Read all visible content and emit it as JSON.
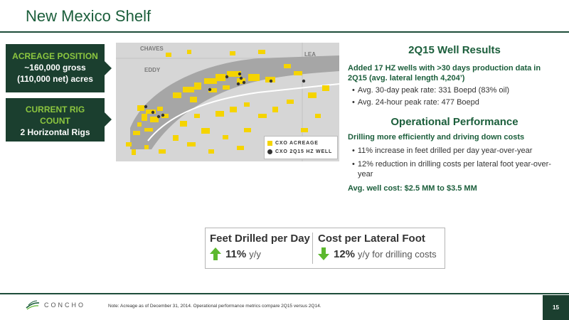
{
  "title": "New Mexico Shelf",
  "acreage": {
    "heading": "ACREAGE POSITION",
    "line1": "~160,000 gross",
    "line2": "(110,000 net) acres"
  },
  "rig": {
    "heading_line1": "CURRENT RIG",
    "heading_line2": "COUNT",
    "value": "2 Horizontal Rigs"
  },
  "map": {
    "county_chaves": "CHAVES",
    "county_eddy": "EDDY",
    "county_lea": "LEA",
    "legend_acreage": "CXO ACREAGE",
    "legend_wells": "CXO 2Q15 HZ WELL",
    "colors": {
      "acreage": "#f5d400",
      "trend": "#a6a6a6",
      "background": "#d6d6d6",
      "well": "#333333"
    }
  },
  "well_results": {
    "title": "2Q15 Well Results",
    "summary": "Added 17 HZ wells with >30 days production data in 2Q15 (avg. lateral length 4,204’)",
    "bullets": [
      "Avg. 30-day peak rate: 331 Boepd (83% oil)",
      "Avg. 24-hour peak rate: 477 Boepd"
    ]
  },
  "operational": {
    "title": "Operational Performance",
    "summary": "Drilling more efficiently and driving down costs",
    "bullets": [
      "11% increase in feet drilled per day year-over-year",
      "12% reduction in drilling costs per lateral foot year-over-year"
    ],
    "cost_line": "Avg. well cost: $2.5 MM to $3.5 MM"
  },
  "metrics": {
    "feet": {
      "heading": "Feet Drilled per Day",
      "value": "11%",
      "suffix": "y/y",
      "arrow": "up-arrow-icon",
      "color": "#5cb82e"
    },
    "cost": {
      "heading": "Cost per Lateral Foot",
      "value": "12%",
      "suffix": "y/y for drilling costs",
      "arrow": "down-arrow-icon",
      "color": "#5cb82e"
    }
  },
  "footer": {
    "logo_text": "CONCHO",
    "note": "Note: Acreage as of December 31, 2014. Operational performance metrics compare 2Q15 versus 2Q14.",
    "page": "15"
  }
}
